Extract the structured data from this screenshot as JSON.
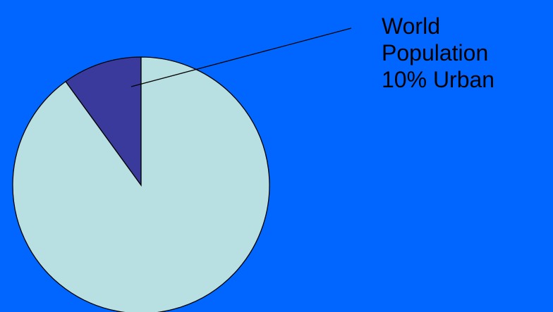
{
  "chart_data": {
    "type": "pie",
    "slices": [
      {
        "label": "Urban",
        "value": 10,
        "color": "#3a3a9c"
      },
      {
        "label": "",
        "value": 90,
        "color": "#b8e0e2"
      }
    ],
    "annotation": {
      "lines": [
        "World",
        "Population",
        "10% Urban"
      ]
    },
    "background": "#0066ff"
  }
}
